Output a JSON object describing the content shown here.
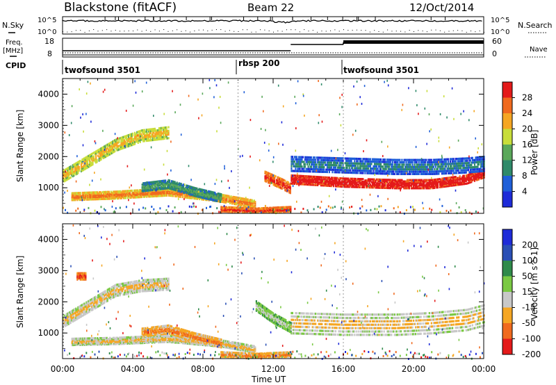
{
  "header": {
    "title": "Blackstone (fitACF)",
    "beam": "Beam 22",
    "date": "12/Oct/2014"
  },
  "labels": {
    "nsky": "N.Sky",
    "freq_line1": "Freq.",
    "freq_line2": "[MHz]",
    "cpid": "CPID",
    "nsearch": "N.Search",
    "nave": "Nave"
  },
  "scales": {
    "nsky_top": "10^5",
    "nsky_bottom": "10^0",
    "nsearch_top": "10^5",
    "nsearch_bottom": "10^0",
    "freq_top": "18",
    "freq_bottom": "8",
    "nave_top": "60",
    "nave_bottom": "0"
  },
  "cpid_segments": [
    {
      "label": "twofsound 3501",
      "start_hour": 0
    },
    {
      "label": "rbsp 200",
      "start_hour": 10
    },
    {
      "label": "twofsound 3501",
      "start_hour": 16
    }
  ],
  "colors": {
    "power": [
      "#1e2bd8",
      "#1f5fd8",
      "#2f8a6a",
      "#5aa85a",
      "#c8dd3a",
      "#f5a623",
      "#f06a1e",
      "#e41a1a"
    ],
    "velocity": [
      "#1e2bd8",
      "#2a4fb5",
      "#2f8a4a",
      "#7ac943",
      "#c8c8c8",
      "#f5a623",
      "#f06a1e",
      "#e41a1a"
    ]
  },
  "chart_data": [
    {
      "type": "heatmap",
      "ylabel": "Slant Range [km]",
      "xlabel": "Time UT",
      "colorbar_label": "Power [dB]",
      "colorbar_ticks": [
        "4",
        "8",
        "12",
        "16",
        "20",
        "24",
        "28"
      ],
      "x_ticks": [
        "00:00",
        "04:00",
        "08:00",
        "12:00",
        "16:00",
        "20:00",
        "00:00"
      ],
      "y_ticks": [
        "1000",
        "2000",
        "3000",
        "4000"
      ],
      "xlim": [
        0,
        24
      ],
      "ylim": [
        180,
        4500
      ],
      "bands": [
        {
          "x": [
            0.0,
            1.5,
            3.0,
            4.5,
            6.0
          ],
          "y": [
            1400,
            1900,
            2400,
            2700,
            2800
          ],
          "width": 350,
          "level": 4
        },
        {
          "x": [
            0.5,
            3.0,
            6.0,
            9.0,
            11.0
          ],
          "y": [
            750,
            800,
            900,
            700,
            500
          ],
          "width": 220,
          "level": 5
        },
        {
          "x": [
            4.5,
            6.0,
            7.5,
            9.0
          ],
          "y": [
            1050,
            1150,
            900,
            700
          ],
          "width": 250,
          "level": 2
        },
        {
          "x": [
            9.0,
            11.0,
            13.0
          ],
          "y": [
            350,
            300,
            350
          ],
          "width": 140,
          "level": 6
        },
        {
          "x": [
            11.5,
            12.5,
            13.0
          ],
          "y": [
            1400,
            1150,
            1000
          ],
          "width": 300,
          "level": 6
        },
        {
          "x": [
            13.0,
            16.0,
            19.0,
            21.0,
            23.0,
            24.0
          ],
          "y": [
            1300,
            1200,
            1150,
            1150,
            1300,
            1500
          ],
          "width": 260,
          "level": 7
        },
        {
          "x": [
            13.0,
            16.0,
            19.0,
            21.0,
            23.0,
            24.0
          ],
          "y": [
            1800,
            1750,
            1700,
            1700,
            1750,
            1800
          ],
          "width": 450,
          "level": 1
        }
      ]
    },
    {
      "type": "heatmap",
      "ylabel": "Slant Range [km]",
      "xlabel": "Time UT",
      "colorbar_label": "Velocity [m s^-1]",
      "colorbar_ticks": [
        "200",
        "100",
        "50",
        "15",
        "-15",
        "-50",
        "-100",
        "-200"
      ],
      "x_ticks": [
        "00:00",
        "04:00",
        "08:00",
        "12:00",
        "16:00",
        "20:00",
        "00:00"
      ],
      "y_ticks": [
        "1000",
        "2000",
        "3000",
        "4000"
      ],
      "xlim": [
        0,
        24
      ],
      "ylim": [
        180,
        4500
      ],
      "bands": [
        {
          "x": [
            0.0,
            1.5,
            3.0,
            4.5,
            6.0
          ],
          "y": [
            1400,
            1900,
            2400,
            2550,
            2600
          ],
          "width": 350,
          "level": 4
        },
        {
          "x": [
            0.5,
            3.0,
            6.0,
            9.0,
            11.0
          ],
          "y": [
            750,
            780,
            850,
            700,
            500
          ],
          "width": 200,
          "level": 4
        },
        {
          "x": [
            4.5,
            6.0,
            7.5,
            9.0
          ],
          "y": [
            1050,
            1150,
            900,
            700
          ],
          "width": 250,
          "level": 5
        },
        {
          "x": [
            9.0,
            11.0,
            13.0
          ],
          "y": [
            350,
            300,
            350
          ],
          "width": 140,
          "level": 5
        },
        {
          "x": [
            11.0,
            12.0,
            13.0
          ],
          "y": [
            1900,
            1500,
            1200
          ],
          "width": 300,
          "level": 3
        },
        {
          "x": [
            13.0,
            16.0,
            19.0,
            21.0,
            23.0,
            24.0
          ],
          "y": [
            1350,
            1300,
            1300,
            1350,
            1450,
            1600
          ],
          "width": 650,
          "level": 4
        },
        {
          "x": [
            0.8,
            1.3
          ],
          "y": [
            2850,
            2850
          ],
          "width": 200,
          "level": 6
        }
      ]
    }
  ]
}
